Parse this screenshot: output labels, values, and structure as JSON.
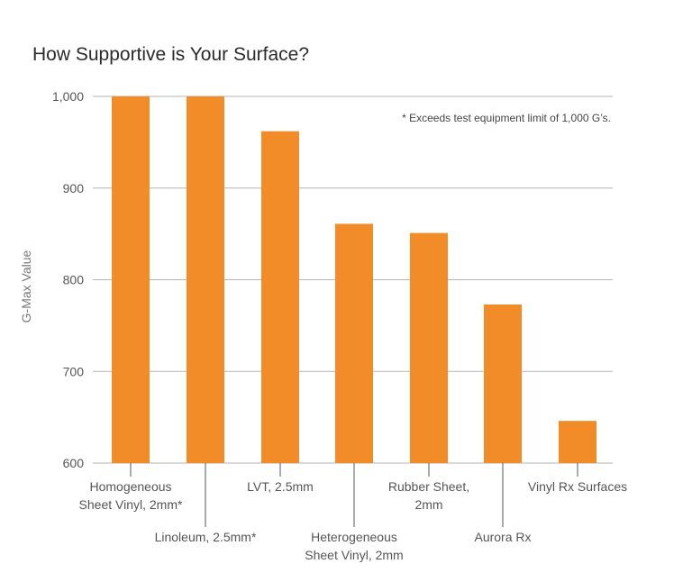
{
  "chart_data": {
    "type": "bar",
    "title": "How Supportive is Your Surface?",
    "ylabel": "G-Max Value",
    "xlabel": "",
    "ylim": [
      600,
      1000
    ],
    "yticks": [
      "600",
      "700",
      "800",
      "900",
      "1,000"
    ],
    "ytick_values": [
      600,
      700,
      800,
      900,
      1000
    ],
    "grid": true,
    "bar_color": "#f28c28",
    "annotation": "* Exceeds test equipment limit of 1,000 G’s.",
    "categories": [
      [
        "Homogeneous",
        "Sheet Vinyl, 2mm*"
      ],
      [
        "Linoleum, 2.5mm*"
      ],
      [
        "LVT, 2.5mm"
      ],
      [
        "Heterogeneous",
        "Sheet Vinyl, 2mm"
      ],
      [
        "Rubber Sheet,",
        "2mm"
      ],
      [
        "Aurora Rx"
      ],
      [
        "Vinyl Rx Surfaces"
      ]
    ],
    "values": [
      1000,
      1000,
      962,
      861,
      851,
      773,
      646
    ]
  }
}
